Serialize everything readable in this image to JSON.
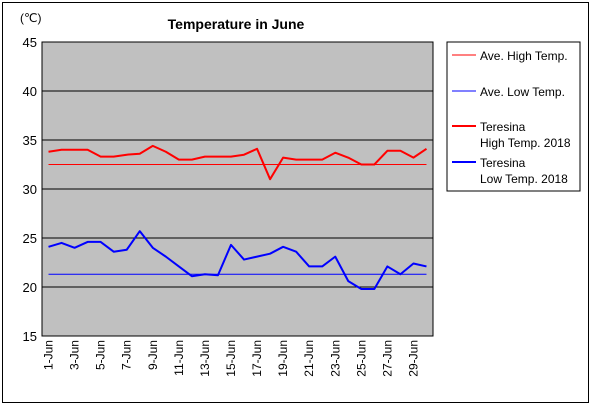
{
  "chart_data": {
    "type": "line",
    "title": "Temperature in June",
    "ylabel": "(℃)",
    "xlabel": "",
    "ylim": [
      15,
      45
    ],
    "yticks": [
      15,
      20,
      25,
      30,
      35,
      40,
      45
    ],
    "grid": true,
    "plot_background": "#c0c0c0",
    "legend_position": "right",
    "x": [
      "1-Jun",
      "2-Jun",
      "3-Jun",
      "4-Jun",
      "5-Jun",
      "6-Jun",
      "7-Jun",
      "8-Jun",
      "9-Jun",
      "10-Jun",
      "11-Jun",
      "12-Jun",
      "13-Jun",
      "14-Jun",
      "15-Jun",
      "16-Jun",
      "17-Jun",
      "18-Jun",
      "19-Jun",
      "20-Jun",
      "21-Jun",
      "22-Jun",
      "23-Jun",
      "24-Jun",
      "25-Jun",
      "26-Jun",
      "27-Jun",
      "28-Jun",
      "29-Jun",
      "30-Jun"
    ],
    "xtick_labels": [
      "1-Jun",
      "3-Jun",
      "5-Jun",
      "7-Jun",
      "9-Jun",
      "11-Jun",
      "13-Jun",
      "15-Jun",
      "17-Jun",
      "19-Jun",
      "21-Jun",
      "23-Jun",
      "25-Jun",
      "27-Jun",
      "29-Jun"
    ],
    "series": [
      {
        "name": "Ave. High Temp.",
        "color": "#ff0000",
        "width": 1,
        "values": [
          32.5,
          32.5,
          32.5,
          32.5,
          32.5,
          32.5,
          32.5,
          32.5,
          32.5,
          32.5,
          32.5,
          32.5,
          32.5,
          32.5,
          32.5,
          32.5,
          32.5,
          32.5,
          32.5,
          32.5,
          32.5,
          32.5,
          32.5,
          32.5,
          32.5,
          32.5,
          32.5,
          32.5,
          32.5,
          32.5
        ]
      },
      {
        "name": "Ave. Low Temp.",
        "color": "#0000ff",
        "width": 1,
        "values": [
          21.3,
          21.3,
          21.3,
          21.3,
          21.3,
          21.3,
          21.3,
          21.3,
          21.3,
          21.3,
          21.3,
          21.3,
          21.3,
          21.3,
          21.3,
          21.3,
          21.3,
          21.3,
          21.3,
          21.3,
          21.3,
          21.3,
          21.3,
          21.3,
          21.3,
          21.3,
          21.3,
          21.3,
          21.3,
          21.3
        ]
      },
      {
        "name": "Teresina High Temp. 2018",
        "legend_lines": [
          "Teresina",
          "High Temp. 2018"
        ],
        "color": "#ff0000",
        "width": 2,
        "values": [
          33.8,
          34.0,
          34.0,
          34.0,
          33.3,
          33.3,
          33.5,
          33.6,
          34.4,
          33.8,
          33.0,
          33.0,
          33.3,
          33.3,
          33.3,
          33.5,
          34.1,
          31.0,
          33.2,
          33.0,
          33.0,
          33.0,
          33.7,
          33.2,
          32.5,
          32.5,
          33.9,
          33.9,
          33.2,
          34.1
        ]
      },
      {
        "name": "Teresina Low Temp. 2018",
        "legend_lines": [
          "Teresina",
          "Low Temp. 2018"
        ],
        "color": "#0000ff",
        "width": 2,
        "values": [
          24.1,
          24.5,
          24.0,
          24.6,
          24.6,
          23.6,
          23.8,
          25.7,
          24.0,
          23.1,
          22.1,
          21.1,
          21.3,
          21.2,
          24.3,
          22.8,
          23.1,
          23.4,
          24.1,
          23.6,
          22.1,
          22.1,
          23.1,
          20.6,
          19.8,
          19.8,
          22.1,
          21.3,
          22.4,
          22.1
        ]
      }
    ]
  }
}
